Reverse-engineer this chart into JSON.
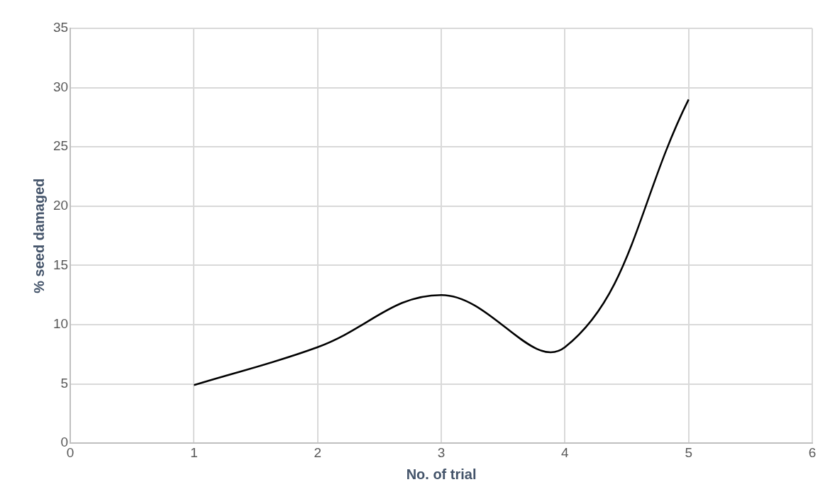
{
  "chart_data": {
    "type": "line",
    "xlabel": "No. of trial",
    "ylabel": "% seed damaged",
    "x": [
      1,
      2,
      3,
      4,
      5
    ],
    "series": [
      {
        "color": "#000000",
        "values": [
          4.9,
          8.1,
          12.5,
          8.1,
          29.0
        ]
      }
    ],
    "xlim": [
      0,
      6
    ],
    "xticks": [
      0,
      1,
      2,
      3,
      4,
      5,
      6
    ],
    "ylim": [
      0,
      35
    ],
    "yticks": [
      0,
      5,
      10,
      15,
      20,
      25,
      30,
      35
    ],
    "grid": true,
    "legend": false,
    "marker": "none",
    "line_style": "solid"
  }
}
